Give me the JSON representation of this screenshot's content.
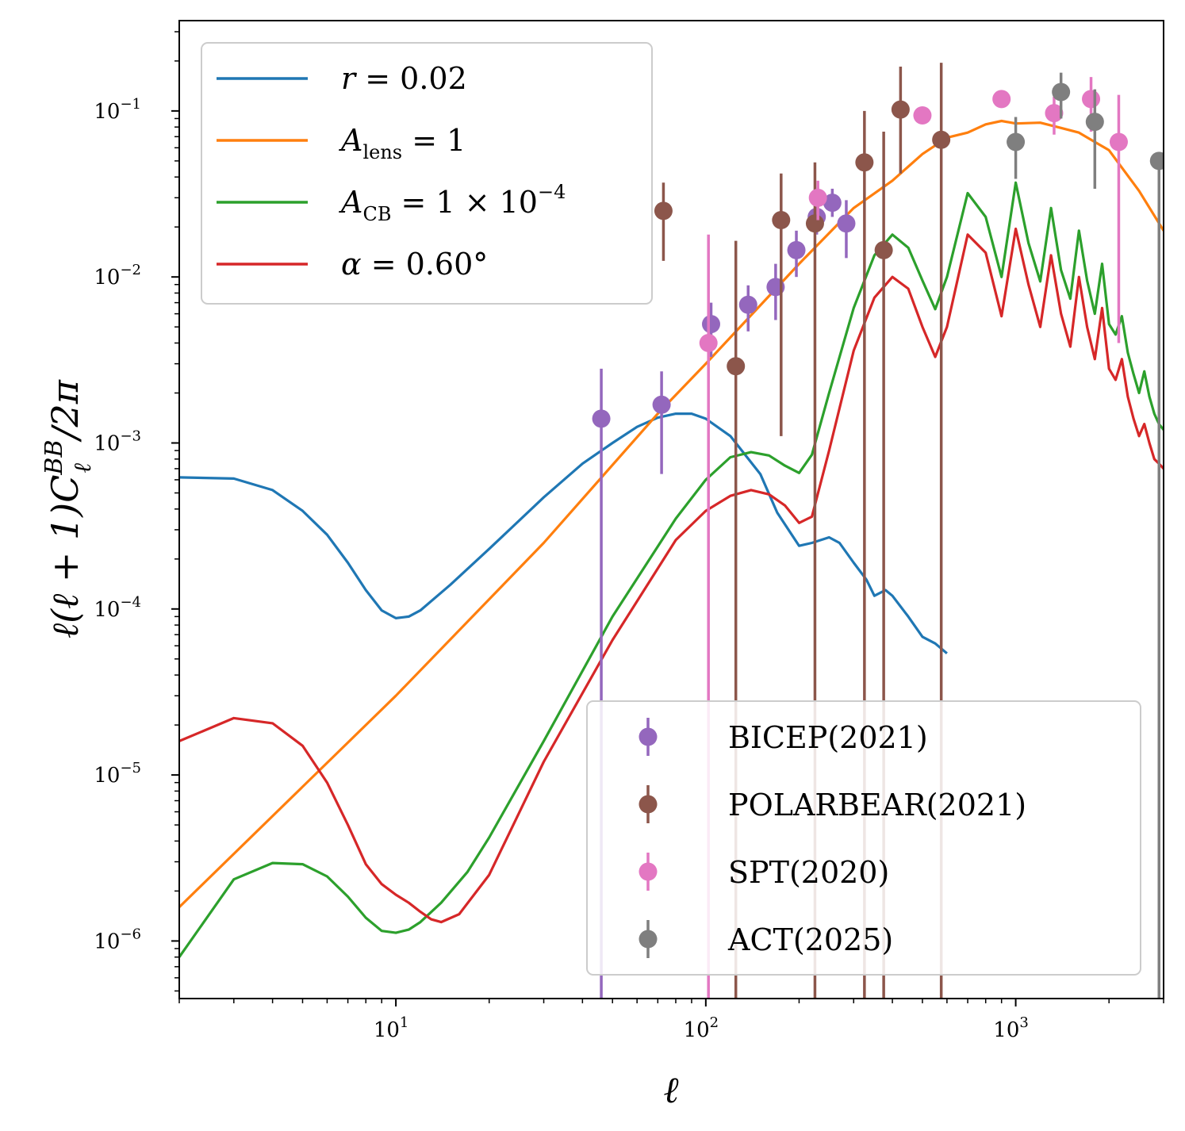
{
  "chart_data": {
    "type": "line",
    "x_scale": "log",
    "y_scale": "log",
    "xlim": [
      2,
      3000
    ],
    "ylim": [
      4.5e-07,
      0.35
    ],
    "xlabel": "ℓ",
    "ylabel": "ℓ(ℓ + 1)C",
    "ylabel_sup": "BB",
    "ylabel_sub": "ℓ",
    "ylabel_tail": "/2π",
    "grid": false,
    "x_ticks": [
      {
        "value": 10,
        "base": "10",
        "exp": "1"
      },
      {
        "value": 100,
        "base": "10",
        "exp": "2"
      },
      {
        "value": 1000,
        "base": "10",
        "exp": "3"
      }
    ],
    "y_ticks": [
      {
        "value": 1e-06,
        "base": "10",
        "exp": "−6"
      },
      {
        "value": 1e-05,
        "base": "10",
        "exp": "−5"
      },
      {
        "value": 0.0001,
        "base": "10",
        "exp": "−4"
      },
      {
        "value": 0.001,
        "base": "10",
        "exp": "−3"
      },
      {
        "value": 0.01,
        "base": "10",
        "exp": "−2"
      },
      {
        "value": 0.1,
        "base": "10",
        "exp": "−1"
      }
    ],
    "line_legend_position": "upper-left",
    "points_legend_position": "lower-right",
    "series": [
      {
        "id": "r",
        "name": "r = 0.02",
        "legend": {
          "main": "r",
          "sub": "",
          "sup": "",
          "tail": " = 0.02"
        },
        "color": "#1f77b4",
        "x": [
          2,
          3,
          4,
          5,
          6,
          7,
          8,
          9,
          10,
          11,
          12,
          15,
          20,
          30,
          40,
          50,
          60,
          70,
          80,
          90,
          100,
          120,
          150,
          170,
          200,
          220,
          250,
          270,
          300,
          330,
          350,
          380,
          400,
          450,
          500,
          550,
          600
        ],
        "y": [
          0.00062,
          0.00061,
          0.00052,
          0.00039,
          0.00028,
          0.00019,
          0.00013,
          9.8e-05,
          8.8e-05,
          9e-05,
          9.8e-05,
          0.00014,
          0.00023,
          0.00047,
          0.00075,
          0.001,
          0.00125,
          0.00142,
          0.0015,
          0.0015,
          0.0014,
          0.0011,
          0.00065,
          0.00038,
          0.00024,
          0.00025,
          0.00027,
          0.00025,
          0.00019,
          0.00015,
          0.00012,
          0.00013,
          0.00012,
          9e-05,
          6.8e-05,
          6.2e-05,
          5.4e-05
        ]
      },
      {
        "id": "lens",
        "name": "A_lens = 1",
        "legend": {
          "main": "A",
          "sub": "lens",
          "sup": "",
          "tail": " = 1"
        },
        "color": "#ff7f0e",
        "x": [
          2,
          10,
          30,
          70,
          100,
          200,
          300,
          400,
          500,
          600,
          700,
          800,
          900,
          1000,
          1200,
          1400,
          1600,
          1800,
          2000,
          2500,
          3000
        ],
        "y": [
          1.6e-06,
          3e-05,
          0.00025,
          0.0015,
          0.003,
          0.012,
          0.026,
          0.038,
          0.055,
          0.069,
          0.074,
          0.083,
          0.087,
          0.084,
          0.085,
          0.079,
          0.074,
          0.065,
          0.058,
          0.033,
          0.019
        ]
      },
      {
        "id": "cb",
        "name": "A_CB = 1 × 10^-4",
        "legend": {
          "main": "A",
          "sub": "CB",
          "sup": "−4",
          "tail": " = 1 × 10"
        },
        "color": "#2ca02c",
        "x": [
          2,
          3,
          4,
          5,
          6,
          7,
          8,
          9,
          10,
          11,
          12,
          14,
          17,
          20,
          30,
          50,
          80,
          100,
          120,
          140,
          160,
          180,
          200,
          220,
          250,
          300,
          350,
          400,
          450,
          500,
          550,
          600,
          700,
          800,
          900,
          1000,
          1100,
          1200,
          1300,
          1400,
          1500,
          1600,
          1700,
          1800,
          1900,
          2000,
          2100,
          2200,
          2300,
          2400,
          2500,
          2600,
          2700,
          2800,
          2900,
          3000
        ],
        "y": [
          8e-07,
          2.35e-06,
          2.95e-06,
          2.9e-06,
          2.45e-06,
          1.85e-06,
          1.38e-06,
          1.15e-06,
          1.12e-06,
          1.17e-06,
          1.3e-06,
          1.7e-06,
          2.6e-06,
          4.2e-06,
          1.6e-05,
          9e-05,
          0.00035,
          0.0006,
          0.00082,
          0.00088,
          0.00084,
          0.00073,
          0.00066,
          0.00085,
          0.002,
          0.0065,
          0.0135,
          0.018,
          0.015,
          0.0095,
          0.0064,
          0.01,
          0.032,
          0.023,
          0.01,
          0.037,
          0.016,
          0.0094,
          0.026,
          0.011,
          0.0074,
          0.019,
          0.0095,
          0.006,
          0.012,
          0.0052,
          0.0045,
          0.0058,
          0.0035,
          0.0026,
          0.002,
          0.0027,
          0.0019,
          0.0015,
          0.0013,
          0.0012
        ]
      },
      {
        "id": "alpha",
        "name": "α = 0.60°",
        "legend": {
          "main": "α",
          "sub": "",
          "sup": "",
          "tail": " = 0.60°"
        },
        "color": "#d62728",
        "x": [
          2,
          3,
          4,
          5,
          6,
          7,
          8,
          9,
          10,
          11,
          12,
          13,
          14,
          16,
          20,
          30,
          50,
          80,
          100,
          120,
          140,
          160,
          180,
          200,
          220,
          250,
          300,
          350,
          400,
          450,
          500,
          550,
          600,
          700,
          800,
          900,
          1000,
          1100,
          1200,
          1300,
          1400,
          1500,
          1600,
          1700,
          1800,
          1900,
          2000,
          2100,
          2200,
          2300,
          2400,
          2500,
          2600,
          2700,
          2800,
          2900,
          3000
        ],
        "y": [
          1.6e-05,
          2.2e-05,
          2.05e-05,
          1.5e-05,
          9e-06,
          5e-06,
          2.9e-06,
          2.2e-06,
          1.9e-06,
          1.7e-06,
          1.5e-06,
          1.35e-06,
          1.3e-06,
          1.45e-06,
          2.5e-06,
          1.2e-05,
          6.5e-05,
          0.00026,
          0.00039,
          0.00048,
          0.00052,
          0.00049,
          0.00042,
          0.00033,
          0.00036,
          0.0009,
          0.0036,
          0.0075,
          0.01,
          0.0085,
          0.005,
          0.0033,
          0.005,
          0.018,
          0.014,
          0.0058,
          0.0195,
          0.009,
          0.005,
          0.0135,
          0.006,
          0.0038,
          0.01,
          0.005,
          0.0032,
          0.0065,
          0.0028,
          0.0024,
          0.0032,
          0.0019,
          0.0014,
          0.0011,
          0.0013,
          0.001,
          0.0008,
          0.00075,
          0.0007
        ]
      }
    ],
    "points": [
      {
        "id": "bicep",
        "name": "BICEP(2021)",
        "color": "#9467bd",
        "x": [
          46,
          72,
          104,
          137,
          168,
          196,
          228,
          256,
          284
        ],
        "y": [
          0.0014,
          0.0017,
          0.0052,
          0.0068,
          0.0087,
          0.0145,
          0.023,
          0.028,
          0.021
        ],
        "ylo": [
          4.5e-07,
          0.00065,
          0.0033,
          0.0047,
          0.0055,
          0.01,
          0.018,
          0.023,
          0.013
        ],
        "yhi": [
          0.0028,
          0.0027,
          0.007,
          0.0089,
          0.012,
          0.019,
          0.028,
          0.034,
          0.029
        ]
      },
      {
        "id": "polarbear",
        "name": "POLARBEAR(2021)",
        "color": "#8c564b",
        "x": [
          73,
          125,
          175,
          225,
          325,
          375,
          425,
          575
        ],
        "y": [
          0.025,
          0.0029,
          0.022,
          0.021,
          0.049,
          0.0145,
          0.102,
          0.067
        ],
        "ylo": [
          0.0125,
          4.5e-07,
          0.0011,
          4.5e-07,
          4.5e-07,
          4.5e-07,
          0.042,
          4.5e-07
        ],
        "yhi": [
          0.037,
          0.0165,
          0.042,
          0.049,
          0.1,
          0.075,
          0.185,
          0.195
        ]
      },
      {
        "id": "spt",
        "name": "SPT(2020)",
        "color": "#e377c2",
        "x": [
          102,
          230,
          500,
          900,
          1330,
          1750,
          2150
        ],
        "y": [
          0.004,
          0.03,
          0.094,
          0.118,
          0.097,
          0.118,
          0.065
        ],
        "ylo": [
          4.5e-07,
          0.022,
          0.09,
          0.11,
          0.072,
          0.075,
          0.004
        ],
        "yhi": [
          0.018,
          0.038,
          0.098,
          0.126,
          0.122,
          0.16,
          0.125
        ]
      },
      {
        "id": "act",
        "name": "ACT(2025)",
        "color": "#7f7f7f",
        "x": [
          1000,
          1400,
          1800,
          2900
        ],
        "y": [
          0.065,
          0.13,
          0.086,
          0.05
        ],
        "ylo": [
          0.039,
          0.09,
          0.034,
          4.5e-07
        ],
        "yhi": [
          0.092,
          0.17,
          0.135,
          0.05
        ]
      }
    ]
  }
}
